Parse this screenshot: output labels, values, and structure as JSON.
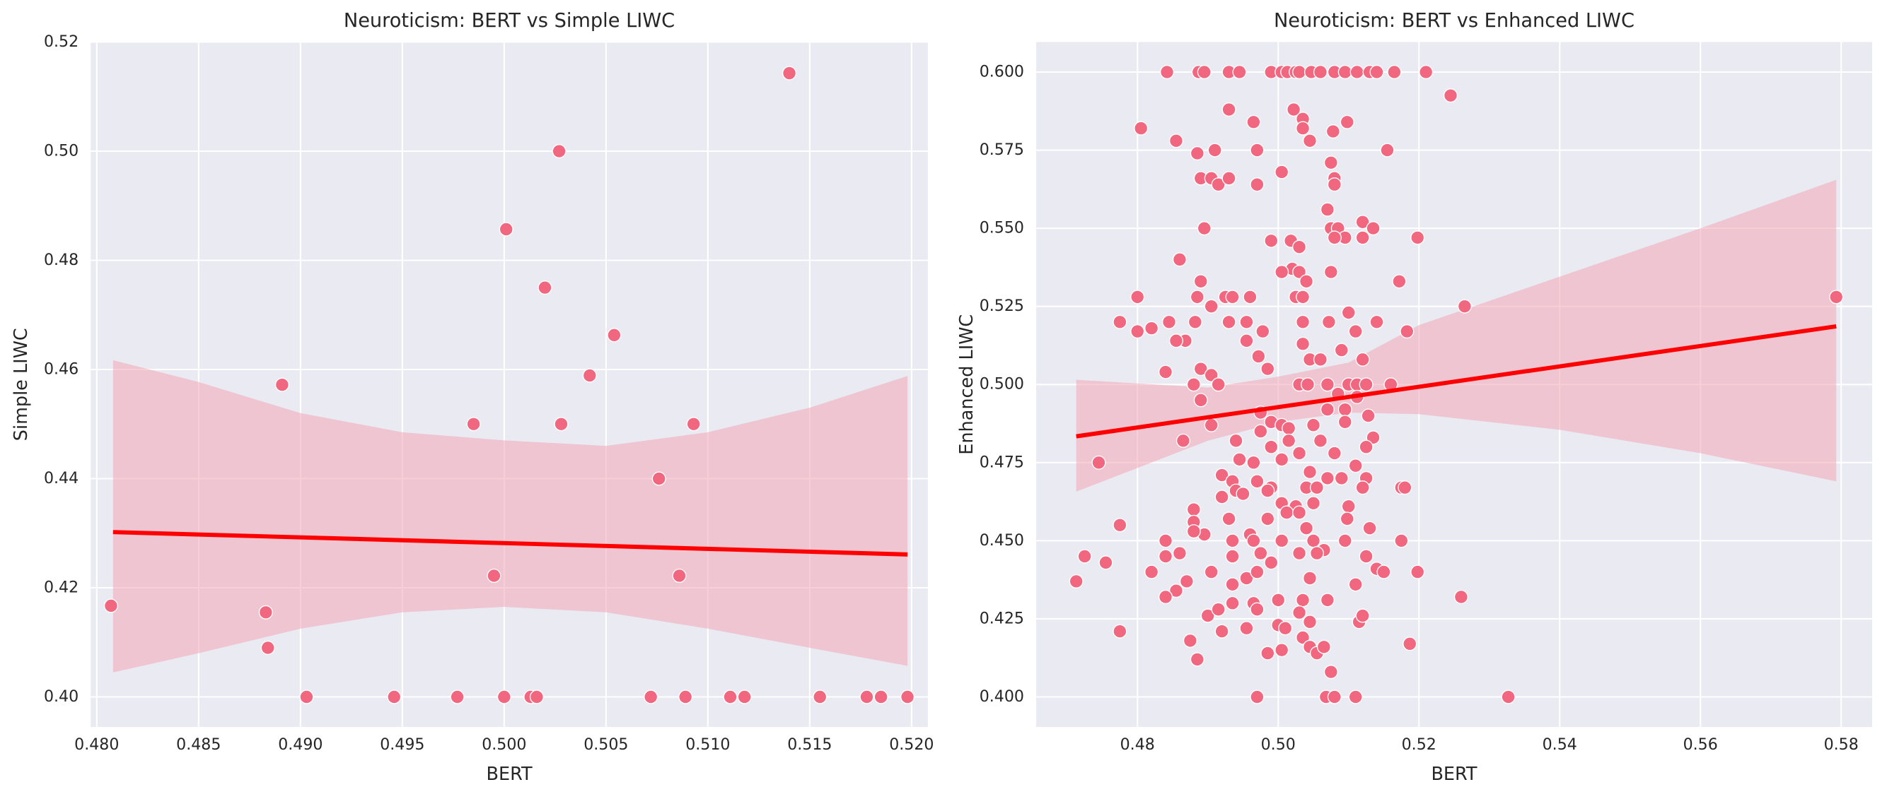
{
  "chart_data": [
    {
      "type": "scatter",
      "title": "Neuroticism: BERT vs Simple LIWC",
      "xlabel": "BERT",
      "ylabel": "Simple LIWC",
      "color": "#f0677f",
      "grid": true,
      "xlim": [
        0.4797,
        0.5208
      ],
      "ylim": [
        0.3945,
        0.52
      ],
      "xticks": [
        {
          "value": 0.48,
          "label": "0.480"
        },
        0.485,
        {
          "value": 0.49,
          "label": "0.490"
        },
        0.495,
        {
          "value": 0.5,
          "label": "0.500"
        },
        0.505,
        {
          "value": 0.51,
          "label": "0.510"
        },
        0.515,
        {
          "value": 0.52,
          "label": "0.520"
        }
      ],
      "yticks": [
        {
          "value": 0.4,
          "label": "0.40"
        },
        0.42,
        0.44,
        0.46,
        0.48,
        {
          "value": 0.5,
          "label": "0.50"
        },
        0.52
      ],
      "x": [
        0.4807,
        0.4883,
        0.4884,
        0.4891,
        0.4903,
        0.4946,
        0.4977,
        0.4985,
        0.4995,
        0.5,
        0.5001,
        0.5013,
        0.5016,
        0.502,
        0.5027,
        0.5028,
        0.5042,
        0.5054,
        0.5072,
        0.5076,
        0.5086,
        0.5089,
        0.5093,
        0.5111,
        0.5118,
        0.514,
        0.5155,
        0.5178,
        0.5185,
        0.5198
      ],
      "y": [
        0.4167,
        0.4155,
        0.409,
        0.4572,
        0.4,
        0.4,
        0.4,
        0.45,
        0.4222,
        0.4,
        0.4857,
        0.4,
        0.4,
        0.475,
        0.5,
        0.45,
        0.4589,
        0.4663,
        0.4,
        0.44,
        0.4222,
        0.4,
        0.45,
        0.4,
        0.4,
        0.5143,
        0.4,
        0.4,
        0.4,
        0.4
      ],
      "regression": {
        "color": "#ff0000",
        "x": [
          0.4808,
          0.5198
        ],
        "y": [
          0.4302,
          0.4261
        ]
      },
      "band": {
        "color": "#f2a0ae",
        "x": [
          0.4808,
          0.485,
          0.49,
          0.495,
          0.5,
          0.505,
          0.51,
          0.515,
          0.5198
        ],
        "upper": [
          0.4617,
          0.4577,
          0.452,
          0.4485,
          0.447,
          0.446,
          0.4485,
          0.453,
          0.4588
        ],
        "lower": [
          0.4045,
          0.408,
          0.4125,
          0.4155,
          0.4165,
          0.4155,
          0.4125,
          0.409,
          0.4057
        ]
      }
    },
    {
      "type": "scatter",
      "title": "Neuroticism: BERT vs Enhanced LIWC",
      "xlabel": "BERT",
      "ylabel": "Enhanced LIWC",
      "color": "#f0677f",
      "grid": true,
      "xlim": [
        0.4656,
        0.5844
      ],
      "ylim": [
        0.3904,
        0.6096
      ],
      "xticks": [
        0.48,
        {
          "value": 0.5,
          "label": "0.50"
        },
        0.52,
        0.54,
        0.56,
        0.58
      ],
      "yticks": [
        {
          "value": 0.4,
          "label": "0.400"
        },
        0.425,
        {
          "value": 0.45,
          "label": "0.450"
        },
        0.475,
        {
          "value": 0.5,
          "label": "0.500"
        },
        0.525,
        {
          "value": 0.55,
          "label": "0.550"
        },
        0.575,
        {
          "value": 0.6,
          "label": "0.600"
        }
      ],
      "x": [
        0.4842,
        0.4887,
        0.4895,
        0.493,
        0.4945,
        0.499,
        0.5005,
        0.5013,
        0.5025,
        0.503,
        0.5047,
        0.506,
        0.508,
        0.5095,
        0.5112,
        0.513,
        0.514,
        0.5165,
        0.521,
        0.5245,
        0.4805,
        0.4855,
        0.4885,
        0.491,
        0.493,
        0.4965,
        0.497,
        0.5005,
        0.5022,
        0.5035,
        0.5035,
        0.5045,
        0.5078,
        0.5098,
        0.5075,
        0.508,
        0.489,
        0.4905,
        0.4915,
        0.493,
        0.497,
        0.508,
        0.5155,
        0.507,
        0.4895,
        0.5075,
        0.5085,
        0.5095,
        0.512,
        0.5135,
        0.5198,
        0.508,
        0.486,
        0.499,
        0.5018,
        0.502,
        0.503,
        0.503,
        0.5005,
        0.5075,
        0.512,
        0.5172,
        0.48,
        0.4885,
        0.489,
        0.4925,
        0.4935,
        0.496,
        0.5025,
        0.5035,
        0.504,
        0.51,
        0.5265,
        0.5793,
        0.4775,
        0.48,
        0.482,
        0.4845,
        0.4868,
        0.4882,
        0.4905,
        0.493,
        0.4955,
        0.4978,
        0.5035,
        0.5072,
        0.511,
        0.514,
        0.5183,
        0.4855,
        0.4955,
        0.5035,
        0.5045,
        0.506,
        0.509,
        0.512,
        0.489,
        0.4905,
        0.4985,
        0.4972,
        0.484,
        0.488,
        0.4915,
        0.503,
        0.5042,
        0.507,
        0.51,
        0.5112,
        0.5125,
        0.516,
        0.5112,
        0.489,
        0.507,
        0.5085,
        0.5095,
        0.4975,
        0.4905,
        0.4975,
        0.499,
        0.5005,
        0.5015,
        0.505,
        0.5095,
        0.5128,
        0.4865,
        0.494,
        0.5015,
        0.506,
        0.5135,
        0.499,
        0.503,
        0.508,
        0.5125,
        0.4745,
        0.4945,
        0.4965,
        0.5005,
        0.5045,
        0.511,
        0.492,
        0.4935,
        0.497,
        0.499,
        0.504,
        0.5055,
        0.507,
        0.509,
        0.5125,
        0.5175,
        0.518,
        0.488,
        0.492,
        0.494,
        0.495,
        0.4985,
        0.5005,
        0.5025,
        0.505,
        0.51,
        0.512,
        0.4775,
        0.488,
        0.4895,
        0.493,
        0.496,
        0.4985,
        0.5012,
        0.503,
        0.504,
        0.5098,
        0.513,
        0.484,
        0.486,
        0.488,
        0.4935,
        0.4965,
        0.5005,
        0.505,
        0.5065,
        0.5095,
        0.5175,
        0.4725,
        0.4755,
        0.484,
        0.4935,
        0.4975,
        0.499,
        0.503,
        0.5055,
        0.514,
        0.515,
        0.5198,
        0.5125,
        0.4713,
        0.482,
        0.4855,
        0.487,
        0.4905,
        0.4935,
        0.4955,
        0.497,
        0.5045,
        0.511,
        0.484,
        0.4935,
        0.4965,
        0.5,
        0.5035,
        0.507,
        0.526,
        0.49,
        0.4915,
        0.497,
        0.5,
        0.503,
        0.5045,
        0.5115,
        0.512,
        0.4775,
        0.4875,
        0.492,
        0.4955,
        0.501,
        0.5035,
        0.5045,
        0.4885,
        0.4985,
        0.5005,
        0.5055,
        0.5065,
        0.5187,
        0.5075,
        0.497,
        0.5068,
        0.508,
        0.511,
        0.5327
      ],
      "y": [
        0.6,
        0.6,
        0.6,
        0.6,
        0.6,
        0.6,
        0.6,
        0.6,
        0.6,
        0.6,
        0.6,
        0.6,
        0.6,
        0.6,
        0.6,
        0.6,
        0.6,
        0.6,
        0.6,
        0.5925,
        0.582,
        0.578,
        0.574,
        0.575,
        0.588,
        0.584,
        0.575,
        0.568,
        0.588,
        0.585,
        0.582,
        0.578,
        0.581,
        0.584,
        0.571,
        0.566,
        0.566,
        0.566,
        0.564,
        0.566,
        0.564,
        0.564,
        0.575,
        0.556,
        0.55,
        0.55,
        0.55,
        0.547,
        0.552,
        0.55,
        0.547,
        0.547,
        0.54,
        0.546,
        0.546,
        0.537,
        0.536,
        0.544,
        0.536,
        0.536,
        0.547,
        0.533,
        0.528,
        0.528,
        0.533,
        0.528,
        0.528,
        0.528,
        0.528,
        0.528,
        0.533,
        0.523,
        0.525,
        0.528,
        0.52,
        0.517,
        0.518,
        0.52,
        0.514,
        0.52,
        0.525,
        0.52,
        0.52,
        0.517,
        0.52,
        0.52,
        0.517,
        0.52,
        0.517,
        0.514,
        0.514,
        0.513,
        0.508,
        0.508,
        0.511,
        0.508,
        0.505,
        0.503,
        0.505,
        0.509,
        0.504,
        0.5,
        0.5,
        0.5,
        0.5,
        0.5,
        0.5,
        0.5,
        0.5,
        0.5,
        0.496,
        0.495,
        0.492,
        0.497,
        0.492,
        0.491,
        0.487,
        0.485,
        0.488,
        0.487,
        0.486,
        0.487,
        0.488,
        0.49,
        0.482,
        0.482,
        0.482,
        0.482,
        0.483,
        0.48,
        0.478,
        0.478,
        0.48,
        0.475,
        0.476,
        0.475,
        0.476,
        0.472,
        0.474,
        0.471,
        0.469,
        0.469,
        0.467,
        0.467,
        0.467,
        0.47,
        0.47,
        0.47,
        0.467,
        0.467,
        0.46,
        0.464,
        0.466,
        0.465,
        0.466,
        0.462,
        0.461,
        0.462,
        0.461,
        0.467,
        0.455,
        0.456,
        0.452,
        0.457,
        0.452,
        0.457,
        0.459,
        0.459,
        0.454,
        0.457,
        0.454,
        0.45,
        0.446,
        0.453,
        0.45,
        0.45,
        0.45,
        0.45,
        0.447,
        0.45,
        0.45,
        0.445,
        0.443,
        0.445,
        0.445,
        0.446,
        0.443,
        0.446,
        0.446,
        0.441,
        0.44,
        0.44,
        0.445,
        0.437,
        0.44,
        0.434,
        0.437,
        0.44,
        0.436,
        0.438,
        0.44,
        0.438,
        0.436,
        0.432,
        0.43,
        0.43,
        0.431,
        0.431,
        0.431,
        0.432,
        0.426,
        0.428,
        0.428,
        0.423,
        0.427,
        0.424,
        0.424,
        0.426,
        0.421,
        0.418,
        0.421,
        0.422,
        0.422,
        0.419,
        0.416,
        0.412,
        0.414,
        0.415,
        0.414,
        0.416,
        0.417,
        0.408,
        0.4,
        0.4,
        0.4,
        0.4,
        0.4
      ],
      "regression": {
        "color": "#ff0000",
        "x": [
          0.4713,
          0.5793
        ],
        "y": [
          0.4834,
          0.5186
        ]
      },
      "band": {
        "color": "#f2a0ae",
        "x": [
          0.4713,
          0.49,
          0.5,
          0.51,
          0.52,
          0.54,
          0.56,
          0.5793
        ],
        "upper": [
          0.5015,
          0.499,
          0.5025,
          0.507,
          0.519,
          0.5345,
          0.55,
          0.5655
        ],
        "lower": [
          0.4657,
          0.482,
          0.488,
          0.491,
          0.4905,
          0.4855,
          0.478,
          0.469
        ]
      }
    }
  ]
}
